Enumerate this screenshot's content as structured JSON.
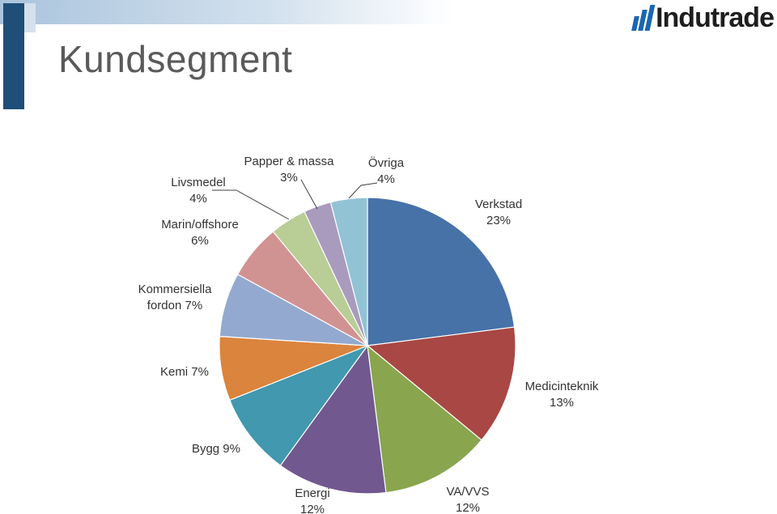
{
  "header": {
    "title": "Kundsegment",
    "logo_text": "Indutrade"
  },
  "chart_data": {
    "type": "pie",
    "title": "",
    "slices": [
      {
        "label_lines": [
          "Verkstad",
          "23%"
        ],
        "value": 23,
        "color": "#4672a8"
      },
      {
        "label_lines": [
          "Medicinteknik",
          "13%"
        ],
        "value": 13,
        "color": "#a84744"
      },
      {
        "label_lines": [
          "VA/VVS",
          "12%"
        ],
        "value": 12,
        "color": "#89a54e"
      },
      {
        "label_lines": [
          "Energi",
          "12%"
        ],
        "value": 12,
        "color": "#71588f"
      },
      {
        "label_lines": [
          "Bygg 9%"
        ],
        "value": 9,
        "color": "#4198af"
      },
      {
        "label_lines": [
          "Kemi 7%"
        ],
        "value": 7,
        "color": "#db843d"
      },
      {
        "label_lines": [
          "Kommersiella",
          "fordon 7%"
        ],
        "value": 7,
        "color": "#93a9cf"
      },
      {
        "label_lines": [
          "Marin/offshore",
          "6%"
        ],
        "value": 6,
        "color": "#d19392"
      },
      {
        "label_lines": [
          "Livsmedel",
          "4%"
        ],
        "value": 4,
        "color": "#b9cd96"
      },
      {
        "label_lines": [
          "Papper & massa",
          "3%"
        ],
        "value": 3,
        "color": "#a99bbd"
      },
      {
        "label_lines": [
          "Övriga",
          "4%"
        ],
        "value": 4,
        "color": "#92c3d4"
      }
    ]
  }
}
